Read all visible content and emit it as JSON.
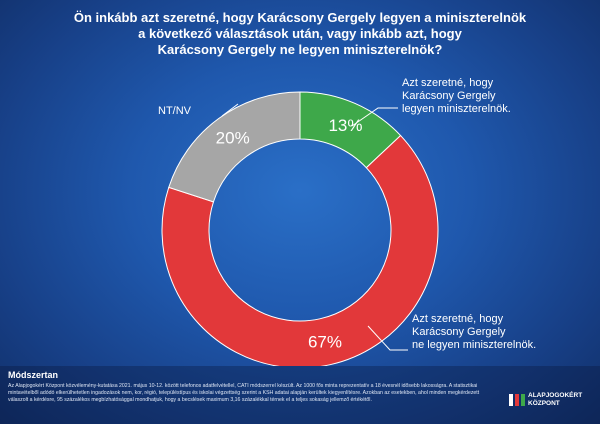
{
  "title_lines": [
    "Ön inkább azt szeretné, hogy Karácsony Gergely legyen a miniszterelnök",
    "a következő választások után, vagy inkább azt,  hogy",
    "Karácsony Gergely ne legyen miniszterelnök?"
  ],
  "chart_data": {
    "type": "pie",
    "donut": true,
    "categories": [
      "Azt szeretné, hogy Karácsony Gergely legyen miniszterelnök.",
      "Azt szeretné, hogy Karácsony Gergely ne legyen miniszterelnök.",
      "NT/NV"
    ],
    "values": [
      13,
      67,
      20
    ],
    "value_labels": [
      "13%",
      "67%",
      "20%"
    ],
    "label_lines": [
      [
        "Azt szeretné, hogy",
        "Karácsony Gergely",
        "legyen miniszterelnök."
      ],
      [
        "Azt szeretné, hogy",
        "Karácsony Gergely",
        "ne legyen miniszterelnök."
      ],
      [
        "NT/NV"
      ]
    ],
    "colors": [
      "#3ea84a",
      "#e2383a",
      "#a6a6a6"
    ]
  },
  "footer": {
    "heading": "Módszertan",
    "text": "Az Alapjogokért Központ közvélemény-kutatása 2021. május 10-12. között telefonos adatfelvétellel, CATI módszerrel készült. Az 1000 fős minta reprezentatív a 18 évesnél idősebb lakosságra. A statisztikai mintavételből adódó elkerülhetetlen ingadozások nem, kor, régió, településtípus és iskolai végzettség szerint a KSH adatai alapján kerültek kiegyenlítésre. Azokban az esetekben, ahol minden megkérdezett válaszolt a kérdésre, 95 százalékos megbízhatósággal mondhatjuk, hogy a becslések maximum 3,16 százalékkal térnek el a teljes sokaság jellemző értékétől."
  },
  "logo": {
    "line1": "ALAPJOGOKÉRT",
    "line2": "KÖZPONT"
  }
}
